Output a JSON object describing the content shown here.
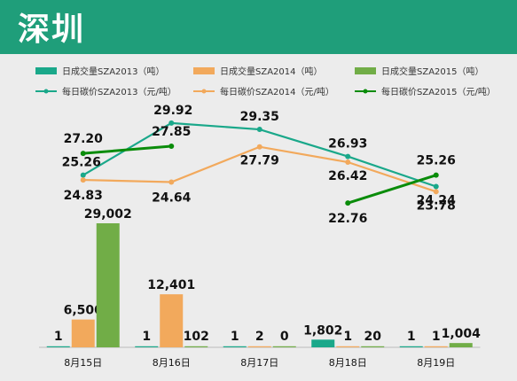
{
  "title": "深圳",
  "colors": {
    "volume_2013": "#1aa88a",
    "volume_2014": "#f2a95c",
    "volume_2015": "#71ad47",
    "price_2013": "#1aa88a",
    "price_2014": "#f2a95c",
    "price_2015": "#0a8c0a"
  },
  "chart_data": {
    "type": "bar",
    "categories": [
      "8月15日",
      "8月16日",
      "8月17日",
      "8月18日",
      "8月19日"
    ],
    "bar_series": [
      {
        "key": "volume_2013",
        "name": "日成交量SZA2013（吨）",
        "values": [
          1,
          1,
          1,
          1802,
          1
        ]
      },
      {
        "key": "volume_2014",
        "name": "日成交量SZA2014（吨）",
        "values": [
          6500,
          12401,
          2,
          1,
          1
        ]
      },
      {
        "key": "volume_2015",
        "name": "日成交量SZA2015（吨）",
        "values": [
          29002,
          102,
          0,
          20,
          1004
        ]
      }
    ],
    "bar_labels": [
      [
        "1",
        "1",
        "1",
        "1,802",
        "1"
      ],
      [
        "6,500",
        "12,401",
        "2",
        "1",
        "1"
      ],
      [
        "29,002",
        "102",
        "0",
        "20",
        "1,004"
      ]
    ],
    "line_series": [
      {
        "key": "price_2013",
        "name": "每日碳价SZA2013（元/吨）",
        "values": [
          25.26,
          29.92,
          29.35,
          26.93,
          24.24
        ]
      },
      {
        "key": "price_2014",
        "name": "每日碳价SZA2014（元/吨）",
        "values": [
          24.83,
          24.64,
          27.79,
          26.42,
          23.78
        ]
      },
      {
        "key": "price_2015",
        "name": "每日碳价SZA2015（元/吨）",
        "values": [
          27.2,
          27.85,
          null,
          22.76,
          25.26
        ]
      }
    ],
    "line_labels": [
      [
        "25.26",
        "29.92",
        "29.35",
        "26.93",
        "24.24"
      ],
      [
        "24.83",
        "24.64",
        "27.79",
        "26.42",
        "23.78"
      ],
      [
        "27.20",
        "27.85",
        "",
        "22.76",
        "25.26"
      ]
    ],
    "bar_axis_range": [
      0,
      29002
    ],
    "line_axis_range": [
      20,
      33
    ],
    "legend_position": "top",
    "grid": false
  }
}
